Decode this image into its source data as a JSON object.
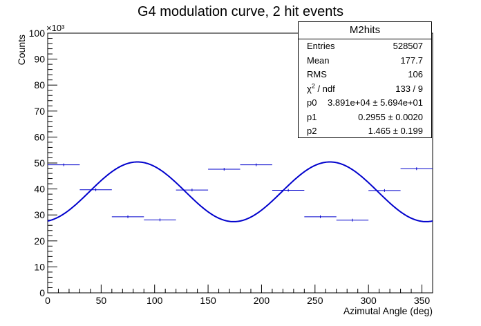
{
  "title": "G4 modulation curve, 2 hit events",
  "exponent_label": "×10³",
  "stats_box": {
    "name": "M2hits",
    "entries_label": "Entries",
    "entries_value": "528507",
    "mean_label": "Mean",
    "mean_value": "177.7",
    "rms_label": "RMS",
    "rms_value": "106",
    "chi_label_main": "χ",
    "chi_label_sup": "2",
    "chi_label_tail": " / ndf",
    "chi_value": "133 / 9",
    "p0_label": "p0",
    "p0_value": "3.891e+04  ± 5.694e+01",
    "p1_label": "p1",
    "p1_value": "0.2955 ± 0.0020",
    "p2_label": "p2",
    "p2_value": "1.465 ± 0.199"
  },
  "colors": {
    "fit_line": "#0000cc",
    "histogram": "#0000cc",
    "axis": "#000000"
  },
  "chart_data": {
    "type": "line",
    "title": "G4 modulation curve, 2 hit events",
    "xlabel": "Azimutal Angle (deg)",
    "ylabel": "Counts",
    "y_multiplier": "×10³",
    "xlim": [
      0,
      360
    ],
    "ylim": [
      0,
      100
    ],
    "x_ticks": [
      0,
      50,
      100,
      150,
      200,
      250,
      300,
      350
    ],
    "y_ticks": [
      0,
      10,
      20,
      30,
      40,
      50,
      60,
      70,
      80,
      90,
      100
    ],
    "histogram": {
      "name": "M2hits",
      "bin_edges": [
        0,
        30,
        60,
        90,
        120,
        150,
        180,
        210,
        240,
        270,
        300,
        330,
        360
      ],
      "values": [
        49.3,
        39.7,
        29.3,
        28.1,
        39.6,
        47.6,
        49.3,
        39.5,
        29.3,
        28.0,
        39.4,
        47.8
      ]
    },
    "fit": {
      "formula": "p0*(1 + p1*cos(2*(x*pi/180 - p2)))",
      "p0": 38.91,
      "p1": 0.2955,
      "p2": 1.465
    },
    "grid": false,
    "legend": "top-right"
  }
}
